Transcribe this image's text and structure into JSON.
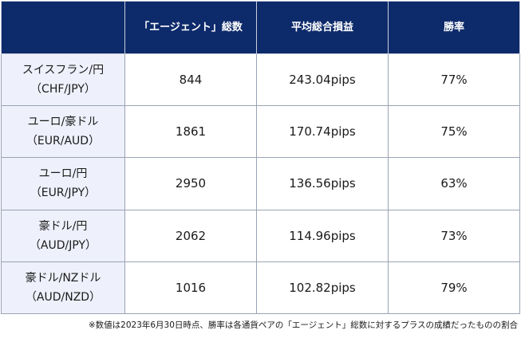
{
  "header": {
    "col_blank": "",
    "col_count": "「エージェント」総数",
    "col_pips": "平均総合損益",
    "col_winrate": "勝率"
  },
  "rows": [
    {
      "pair": "スイスフラン/円",
      "code": "（CHF/JPY）",
      "count": "844",
      "pips": "243.04pips",
      "winrate": "77%"
    },
    {
      "pair": "ユーロ/豪ドル",
      "code": "（EUR/AUD）",
      "count": "1861",
      "pips": "170.74pips",
      "winrate": "75%"
    },
    {
      "pair": "ユーロ/円",
      "code": "（EUR/JPY）",
      "count": "2950",
      "pips": "136.56pips",
      "winrate": "63%"
    },
    {
      "pair": "豪ドル/円",
      "code": "（AUD/JPY）",
      "count": "2062",
      "pips": "114.96pips",
      "winrate": "73%"
    },
    {
      "pair": "豪ドル/NZドル",
      "code": "（AUD/NZD）",
      "count": "1016",
      "pips": "102.82pips",
      "winrate": "79%"
    }
  ],
  "note": "※数値は2023年6月30日時点、勝率は各通貨ペアの「エージェント」総数に対するプラスの成績だったものの割合",
  "colors": {
    "header_bg": "#0d2a6b",
    "row_header_bg": "#eef0fb",
    "border": "#9aa3b5"
  }
}
